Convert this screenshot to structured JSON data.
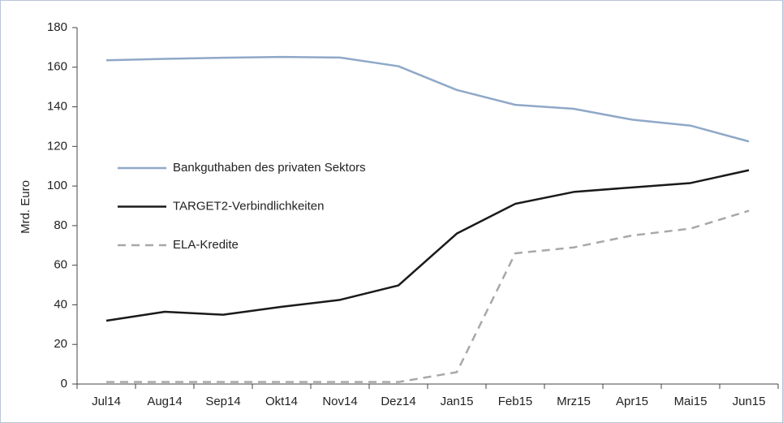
{
  "chart_data": {
    "type": "line",
    "y_label": "Mrd. Euro",
    "categories": [
      "Jul14",
      "Aug14",
      "Sep14",
      "Okt14",
      "Nov14",
      "Dez14",
      "Jan15",
      "Feb15",
      "Mrz15",
      "Apr15",
      "Mai15",
      "Jun15"
    ],
    "series": [
      {
        "name": "Bankguthaben des privaten Sektors",
        "color": "#8fa8c8",
        "dash": false,
        "values": [
          163.5,
          164.2,
          164.8,
          165.2,
          164.9,
          160.5,
          148.5,
          141,
          139,
          133.5,
          130.5,
          122.5
        ]
      },
      {
        "name": "TARGET2-Verbindlichkeiten",
        "color": "#1a1a1a",
        "dash": false,
        "values": [
          32,
          36.5,
          35,
          39,
          42.5,
          49.8,
          76,
          91,
          97,
          99.3,
          101.5,
          108
        ]
      },
      {
        "name": "ELA-Kredite",
        "color": "#a8a8a8",
        "dash": true,
        "values": [
          1,
          1,
          1,
          1,
          1,
          1,
          6,
          66,
          69,
          75,
          78.5,
          87.5
        ]
      }
    ],
    "ylim": [
      0,
      180
    ],
    "yticks": [
      0,
      20,
      40,
      60,
      80,
      100,
      120,
      140,
      160,
      180
    ],
    "grid": false,
    "legend": "left"
  }
}
